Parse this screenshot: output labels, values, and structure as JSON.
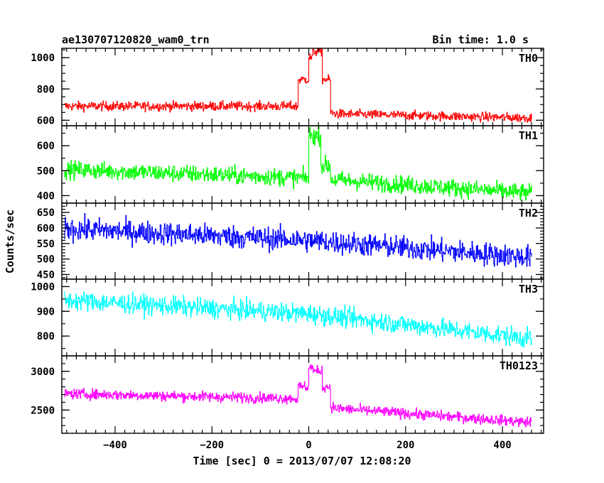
{
  "header": {
    "obs_id": "ae130707120820_wam0_trn",
    "bin_time": "Bin time: 1.0 s"
  },
  "chart_data": {
    "type": "line",
    "xlabel": "Time [sec] 0 = 2013/07/07 12:08:20",
    "ylabel": "Counts/sec",
    "xlim": [
      -510,
      485
    ],
    "x_ticks": [
      -400,
      -200,
      0,
      200,
      400
    ],
    "x_range_data": [
      -505,
      460
    ],
    "panels": [
      {
        "name": "TH0",
        "color": "#ff0000",
        "ylim": [
          565,
          1060
        ],
        "yticks": [
          600,
          800,
          1000
        ],
        "trend": [
          [
            -505,
            690
          ],
          [
            -30,
            690
          ],
          [
            60,
            640
          ],
          [
            460,
            615
          ]
        ],
        "noise": 38,
        "bursts": [
          [
            -22,
            0,
            860
          ],
          [
            0,
            8,
            1000
          ],
          [
            8,
            28,
            1040
          ],
          [
            28,
            45,
            860
          ]
        ]
      },
      {
        "name": "TH1",
        "color": "#00ff00",
        "ylim": [
          370,
          680
        ],
        "yticks": [
          400,
          500,
          600
        ],
        "trend": [
          [
            -505,
            505
          ],
          [
            0,
            470
          ],
          [
            460,
            410
          ]
        ],
        "noise": 45,
        "bursts": [
          [
            0,
            25,
            640
          ],
          [
            25,
            45,
            520
          ]
        ]
      },
      {
        "name": "TH2",
        "color": "#0000ff",
        "ylim": [
          435,
          680
        ],
        "yticks": [
          450,
          500,
          550,
          600,
          650
        ],
        "trend": [
          [
            -505,
            598
          ],
          [
            0,
            560
          ],
          [
            460,
            505
          ]
        ],
        "noise": 48,
        "bursts": []
      },
      {
        "name": "TH3",
        "color": "#00ffff",
        "ylim": [
          720,
          1030
        ],
        "yticks": [
          800,
          900,
          1000
        ],
        "trend": [
          [
            -505,
            945
          ],
          [
            0,
            890
          ],
          [
            460,
            790
          ]
        ],
        "noise": 50,
        "bursts": []
      },
      {
        "name": "TH0123",
        "color": "#ff00ff",
        "ylim": [
          2200,
          3200
        ],
        "yticks": [
          2500,
          3000
        ],
        "trend": [
          [
            -505,
            2710
          ],
          [
            -30,
            2650
          ],
          [
            60,
            2520
          ],
          [
            460,
            2340
          ]
        ],
        "noise": 85,
        "bursts": [
          [
            -22,
            0,
            2800
          ],
          [
            0,
            10,
            3050
          ],
          [
            10,
            28,
            3000
          ],
          [
            28,
            45,
            2800
          ]
        ]
      }
    ]
  }
}
